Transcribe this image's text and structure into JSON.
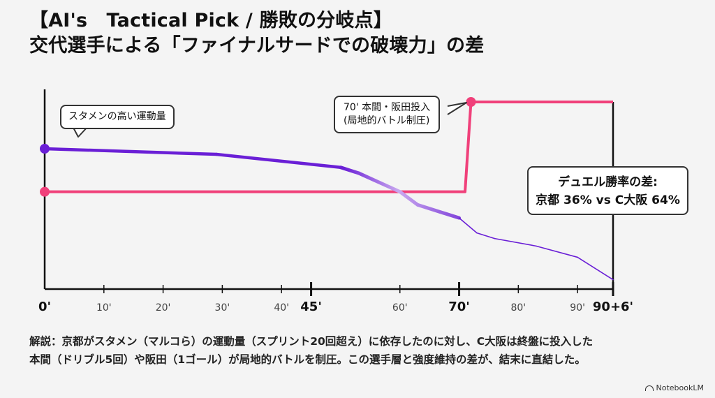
{
  "title": {
    "line1": "【AI's　Tactical Pick / 勝敗の分岐点】",
    "line2": "交代選手による「ファイナルサードでの破壊力」の差"
  },
  "colors": {
    "kyoto": "#6a1fd6",
    "c_osaka": "#f0407a",
    "axis": "#111111",
    "background": "#f4f4f4"
  },
  "chart_data": {
    "type": "line",
    "x_ticks": [
      {
        "value": 0,
        "label": "0'",
        "bold": true
      },
      {
        "value": 10,
        "label": "10'",
        "bold": false
      },
      {
        "value": 20,
        "label": "20'",
        "bold": false
      },
      {
        "value": 30,
        "label": "30'",
        "bold": false
      },
      {
        "value": 40,
        "label": "40'",
        "bold": false
      },
      {
        "value": 45,
        "label": "45'",
        "bold": true
      },
      {
        "value": 60,
        "label": "60'",
        "bold": false
      },
      {
        "value": 70,
        "label": "70'",
        "bold": true
      },
      {
        "value": 80,
        "label": "80'",
        "bold": false
      },
      {
        "value": 90,
        "label": "90'",
        "bold": false
      },
      {
        "value": 96,
        "label": "90+6'",
        "bold": true
      }
    ],
    "xlim": [
      0,
      96
    ],
    "ylim": [
      0,
      100
    ],
    "series": [
      {
        "key": "kyoto",
        "points": [
          [
            0,
            75
          ],
          [
            29,
            72
          ],
          [
            50,
            65
          ],
          [
            53,
            62
          ],
          [
            60,
            52
          ],
          [
            63,
            45
          ],
          [
            70,
            38
          ],
          [
            73,
            30
          ],
          [
            76,
            27
          ],
          [
            83,
            23
          ],
          [
            90,
            17
          ],
          [
            96,
            5
          ]
        ]
      },
      {
        "key": "c_osaka",
        "points": [
          [
            0,
            52
          ],
          [
            71,
            52
          ],
          [
            72,
            100
          ],
          [
            96,
            100
          ]
        ]
      }
    ]
  },
  "callouts": {
    "starters": "スタメンの高い運動量",
    "subs_line1": "70' 本間・阪田投入",
    "subs_line2": "(局地的バトル制圧)"
  },
  "duel": {
    "line1": "デュエル勝率の差:",
    "line2": "京都 36% vs C大阪 64%"
  },
  "description": {
    "line1": "解説：京都がスタメン（マルコら）の運動量（スプリント20回超え）に依存したのに対し、C大阪は終盤に投入した",
    "line2": "本間（ドリブル5回）や阪田（1ゴール）が局地的バトルを制圧。この選手層と強度維持の差が、結末に直結した。"
  },
  "brand": "NotebookLM"
}
